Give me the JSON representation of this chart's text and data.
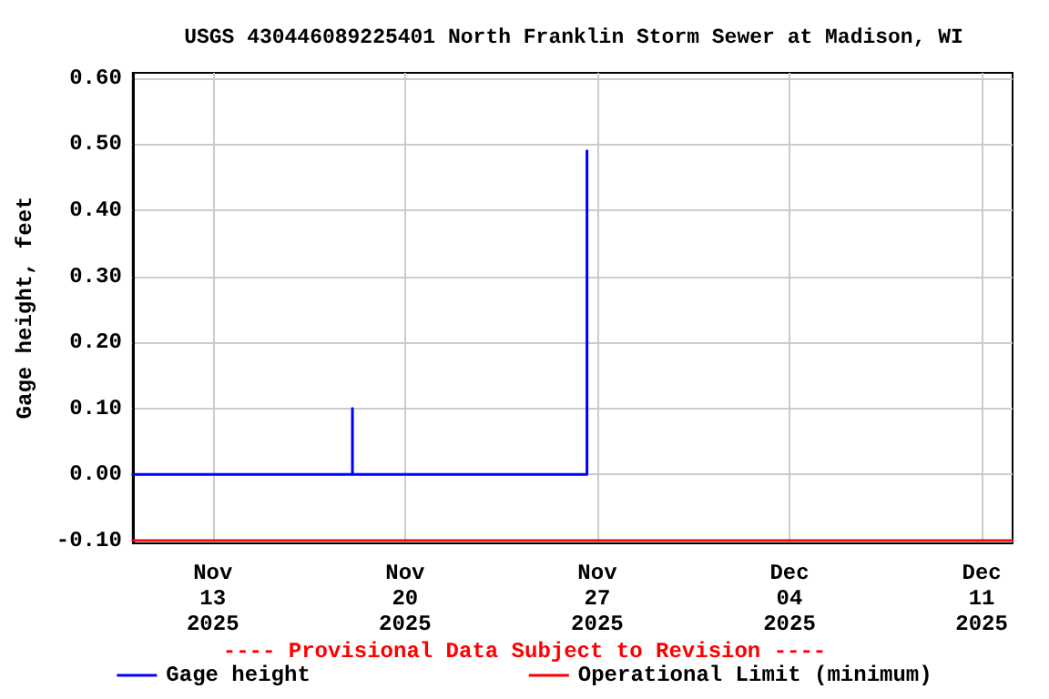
{
  "chart_data": {
    "type": "line",
    "title": "USGS 430446089225401 North Franklin Storm Sewer at Madison, WI",
    "ylabel": "Gage height, feet",
    "annotations": [
      "---- Provisional Data Subject to Revision ----"
    ],
    "series": [
      {
        "name": "Gage height",
        "color": "#0000ff",
        "x": [
          "2025-11-10T02:00",
          "2025-11-18T02:00",
          "2025-11-18T02:00",
          "2025-11-18T02:00",
          "2025-11-26T15:00",
          "2025-11-26T15:00"
        ],
        "values": [
          0,
          0,
          0.1,
          0,
          0,
          0.49
        ]
      },
      {
        "name": "Operational Limit (minimum)",
        "color": "#ff0000",
        "x": [
          "2025-11-10T02:00",
          "2025-12-12T03:00"
        ],
        "values": [
          -0.1,
          -0.1
        ]
      }
    ],
    "xlim": [
      "2025-11-10T02:00",
      "2025-12-12T03:00"
    ],
    "xticks": [
      {
        "value": "2025-11-13",
        "label": "Nov\n13\n2025"
      },
      {
        "value": "2025-11-20",
        "label": "Nov\n20\n2025"
      },
      {
        "value": "2025-11-27",
        "label": "Nov\n27\n2025"
      },
      {
        "value": "2025-12-04",
        "label": "Dec\n04\n2025"
      },
      {
        "value": "2025-12-11",
        "label": "Dec\n11\n2025"
      }
    ],
    "ylim": [
      -0.103,
      0.608
    ],
    "yticks": [
      {
        "value": -0.1,
        "label": "-0.10"
      },
      {
        "value": 0,
        "label": "0.00"
      },
      {
        "value": 0.1,
        "label": "0.10"
      },
      {
        "value": 0.2,
        "label": "0.20"
      },
      {
        "value": 0.3,
        "label": "0.30"
      },
      {
        "value": 0.4,
        "label": "0.40"
      },
      {
        "value": 0.5,
        "label": "0.50"
      },
      {
        "value": 0.6,
        "label": "0.60"
      }
    ],
    "grid": true,
    "legend": "bottom",
    "marker": "none",
    "line_style": "solid"
  }
}
